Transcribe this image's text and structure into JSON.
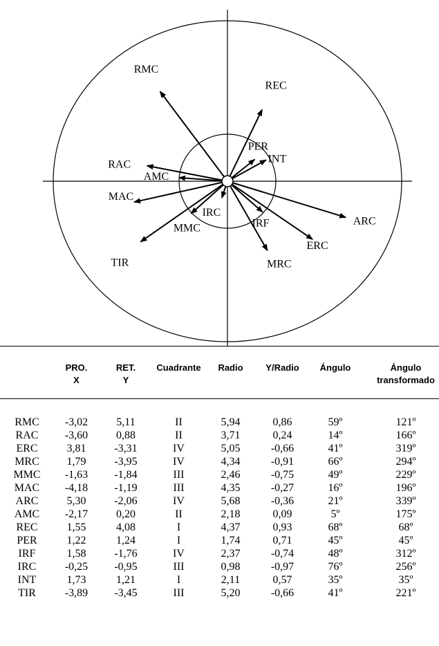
{
  "diagram": {
    "vectors": [
      {
        "label": "RMC",
        "x": -3.02,
        "y": 5.11
      },
      {
        "label": "RAC",
        "x": -3.6,
        "y": 0.88
      },
      {
        "label": "ERC",
        "x": 3.81,
        "y": -3.31
      },
      {
        "label": "MRC",
        "x": 1.79,
        "y": -3.95
      },
      {
        "label": "MMC",
        "x": -1.63,
        "y": -1.84
      },
      {
        "label": "MAC",
        "x": -4.18,
        "y": -1.19
      },
      {
        "label": "ARC",
        "x": 5.3,
        "y": -2.06
      },
      {
        "label": "AMC",
        "x": -2.17,
        "y": 0.2
      },
      {
        "label": "REC",
        "x": 1.55,
        "y": 4.08
      },
      {
        "label": "PER",
        "x": 1.22,
        "y": 1.24
      },
      {
        "label": "IRF",
        "x": 1.58,
        "y": -1.76
      },
      {
        "label": "IRC",
        "x": -0.25,
        "y": -0.95
      },
      {
        "label": "INT",
        "x": 1.73,
        "y": 1.21
      },
      {
        "label": "TIR",
        "x": -3.89,
        "y": -3.45
      }
    ]
  },
  "table": {
    "headers": [
      {
        "line1": "",
        "line2": ""
      },
      {
        "line1": "PRO.",
        "line2": "X"
      },
      {
        "line1": "RET.",
        "line2": "Y"
      },
      {
        "line1": "Cuadrante",
        "line2": ""
      },
      {
        "line1": "Radio",
        "line2": ""
      },
      {
        "line1": "Y/Radio",
        "line2": ""
      },
      {
        "line1": "Ángulo",
        "line2": ""
      },
      {
        "line1": "Ángulo",
        "line2": "transformado"
      }
    ],
    "rows": [
      [
        "RMC",
        "-3,02",
        "5,11",
        "II",
        "5,94",
        "0,86",
        "59º",
        "121º"
      ],
      [
        "RAC",
        "-3,60",
        "0,88",
        "II",
        "3,71",
        "0,24",
        "14º",
        "166º"
      ],
      [
        "ERC",
        "3,81",
        "-3,31",
        "IV",
        "5,05",
        "-0,66",
        "41º",
        "319º"
      ],
      [
        "MRC",
        "1,79",
        "-3,95",
        "IV",
        "4,34",
        "-0,91",
        "66º",
        "294º"
      ],
      [
        "MMC",
        "-1,63",
        "-1,84",
        "III",
        "2,46",
        "-0,75",
        "49º",
        "229º"
      ],
      [
        "MAC",
        "-4,18",
        "-1,19",
        "III",
        "4,35",
        "-0,27",
        "16º",
        "196º"
      ],
      [
        "ARC",
        "5,30",
        "-2,06",
        "IV",
        "5,68",
        "-0,36",
        "21º",
        "339º"
      ],
      [
        "AMC",
        "-2,17",
        "0,20",
        "II",
        "2,18",
        "0,09",
        "5º",
        "175º"
      ],
      [
        "REC",
        "1,55",
        "4,08",
        "I",
        "4,37",
        "0,93",
        "68º",
        "68º"
      ],
      [
        "PER",
        "1,22",
        "1,24",
        "I",
        "1,74",
        "0,71",
        "45º",
        "45º"
      ],
      [
        "IRF",
        "1,58",
        "-1,76",
        "IV",
        "2,37",
        "-0,74",
        "48º",
        "312º"
      ],
      [
        "IRC",
        "-0,25",
        "-0,95",
        "III",
        "0,98",
        "-0,97",
        "76º",
        "256º"
      ],
      [
        "INT",
        "1,73",
        "1,21",
        "I",
        "2,11",
        "0,57",
        "35º",
        "35º"
      ],
      [
        "TIR",
        "-3,89",
        "-3,45",
        "III",
        "5,20",
        "-0,66",
        "41º",
        "221º"
      ]
    ]
  }
}
